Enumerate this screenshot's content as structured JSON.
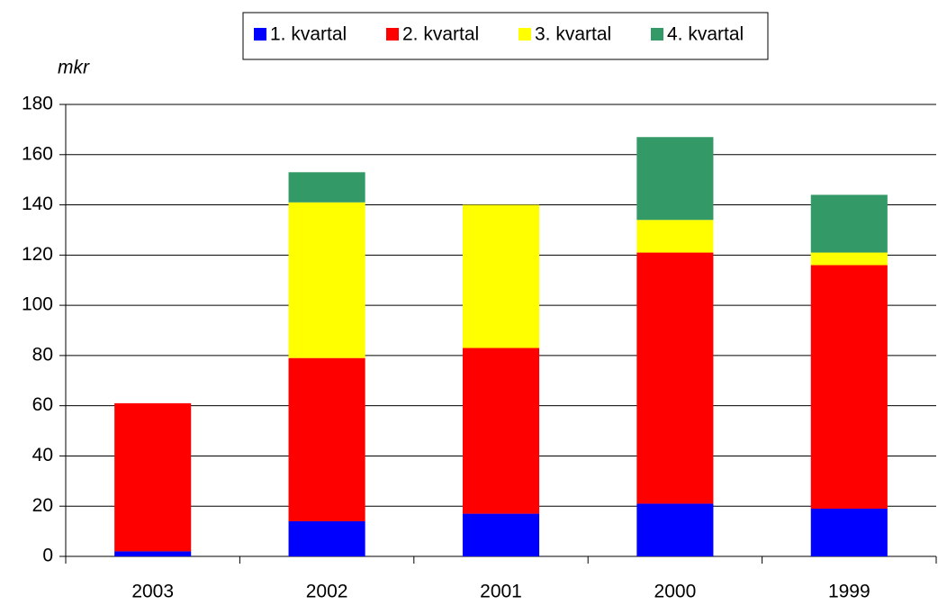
{
  "chart_data": {
    "type": "stacked_bar",
    "y_label": "mkr",
    "categories": [
      "2003",
      "2002",
      "2001",
      "2000",
      "1999"
    ],
    "series": [
      {
        "name": "1. kvartal",
        "color": "#0000ff",
        "values": [
          2,
          14,
          17,
          21,
          19
        ]
      },
      {
        "name": "2. kvartal",
        "color": "#ff0000",
        "values": [
          59,
          65,
          66,
          100,
          97
        ]
      },
      {
        "name": "3. kvartal",
        "color": "#ffff00",
        "values": [
          0,
          62,
          57,
          13,
          5
        ]
      },
      {
        "name": "4. kvartal",
        "color": "#339966",
        "values": [
          0,
          12,
          0,
          33,
          23
        ]
      }
    ],
    "ylim": [
      0,
      180
    ],
    "yticks": [
      0,
      20,
      40,
      60,
      80,
      100,
      120,
      140,
      160,
      180
    ],
    "grid": true,
    "legend": "top"
  }
}
